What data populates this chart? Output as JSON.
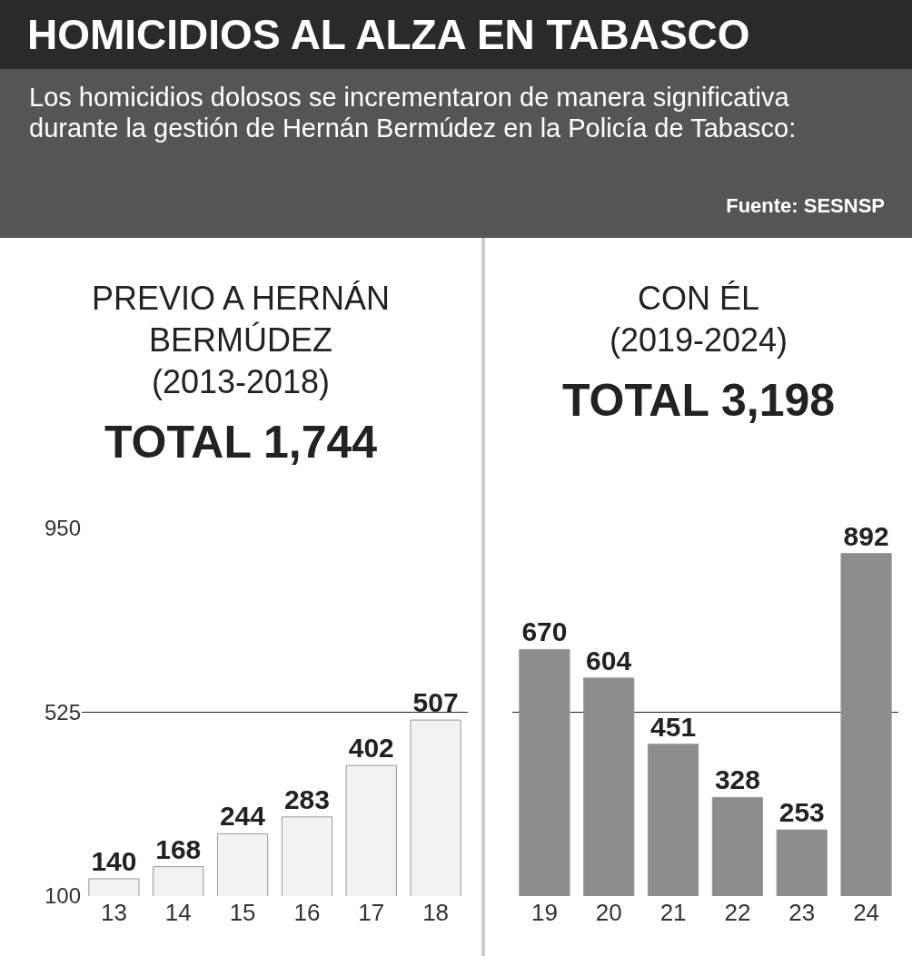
{
  "chart_data": [
    {
      "type": "other",
      "title": "HOMICIDIOS AL ALZA EN TABASCO",
      "subtitle": "Los homicidios dolosos se incrementaron de manera significativa durante la gestión de Hernán Bermúdez en la Policía de Tabasco:",
      "annotations": [
        "Fuente: SESNSP"
      ]
    },
    {
      "type": "bar",
      "title": "PREVIO A HERNÁN BERMÚDEZ",
      "subtitle": "(2013-2018)",
      "annotations": [
        "TOTAL 1,744"
      ],
      "categories": [
        "13",
        "14",
        "15",
        "16",
        "17",
        "18"
      ],
      "values": [
        140,
        168,
        244,
        283,
        402,
        507
      ],
      "color": "#f2f2f2",
      "ylim": [
        100,
        950
      ],
      "yticks": [
        100,
        525,
        950
      ],
      "grid": "y",
      "data_labels": true
    },
    {
      "type": "bar",
      "title": "CON ÉL",
      "subtitle": "(2019-2024)",
      "annotations": [
        "TOTAL 3,198"
      ],
      "categories": [
        "19",
        "20",
        "21",
        "22",
        "23",
        "24"
      ],
      "values": [
        670,
        604,
        451,
        328,
        253,
        892
      ],
      "color": "#8c8c8c",
      "ylim": [
        100,
        950
      ],
      "yticks": [
        100,
        525,
        950
      ],
      "grid": "y",
      "data_labels": true,
      "tick_labels": "x"
    }
  ]
}
